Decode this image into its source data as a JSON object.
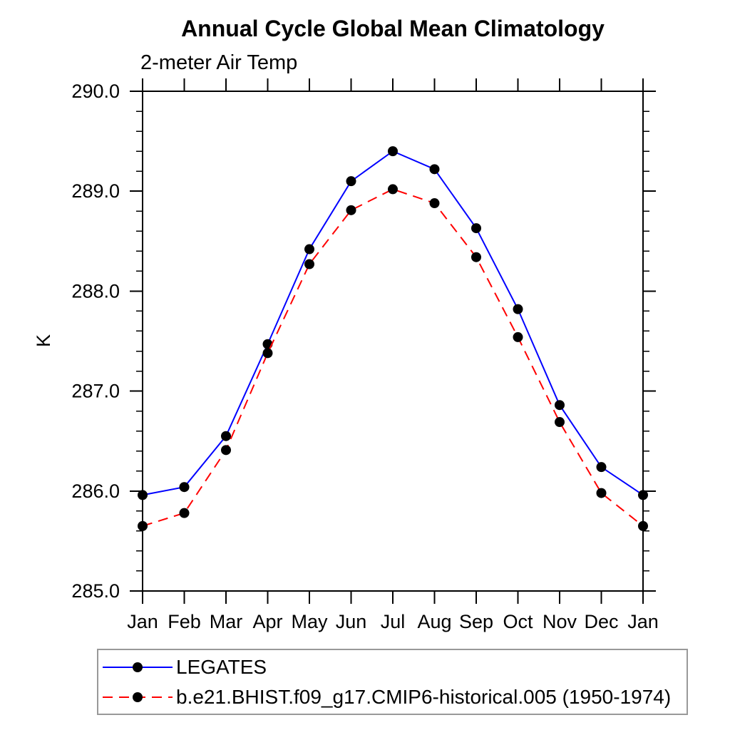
{
  "chart_data": {
    "type": "line",
    "title": "Annual Cycle Global Mean Climatology",
    "subtitle": "2-meter Air Temp",
    "ylabel": "K",
    "xlabel": "",
    "categories": [
      "Jan",
      "Feb",
      "Mar",
      "Apr",
      "May",
      "Jun",
      "Jul",
      "Aug",
      "Sep",
      "Oct",
      "Nov",
      "Dec",
      "Jan"
    ],
    "ylim": [
      285.0,
      290.0
    ],
    "ytick_interval": 1.0,
    "ytick_minor_interval": 0.2,
    "ytick_labels": [
      "285.0",
      "286.0",
      "287.0",
      "288.0",
      "289.0",
      "290.0"
    ],
    "grid": false,
    "legend_position": "bottom-left",
    "axis_color": "#000000",
    "background_color": "#ffffff",
    "legend_border_color": "#999999",
    "series": [
      {
        "name": "LEGATES",
        "color": "#0000ff",
        "line_style": "solid",
        "marker": "circle",
        "marker_color": "#000000",
        "values": [
          285.96,
          286.04,
          286.55,
          287.47,
          288.42,
          289.1,
          289.4,
          289.22,
          288.63,
          287.82,
          286.86,
          286.24,
          285.96
        ]
      },
      {
        "name": "b.e21.BHIST.f09_g17.CMIP6-historical.005 (1950-1974)",
        "color": "#ff0000",
        "line_style": "dashed",
        "marker": "circle",
        "marker_color": "#000000",
        "values": [
          285.65,
          285.78,
          286.41,
          287.38,
          288.27,
          288.81,
          289.02,
          288.88,
          288.34,
          287.54,
          286.69,
          285.98,
          285.65
        ]
      }
    ]
  }
}
